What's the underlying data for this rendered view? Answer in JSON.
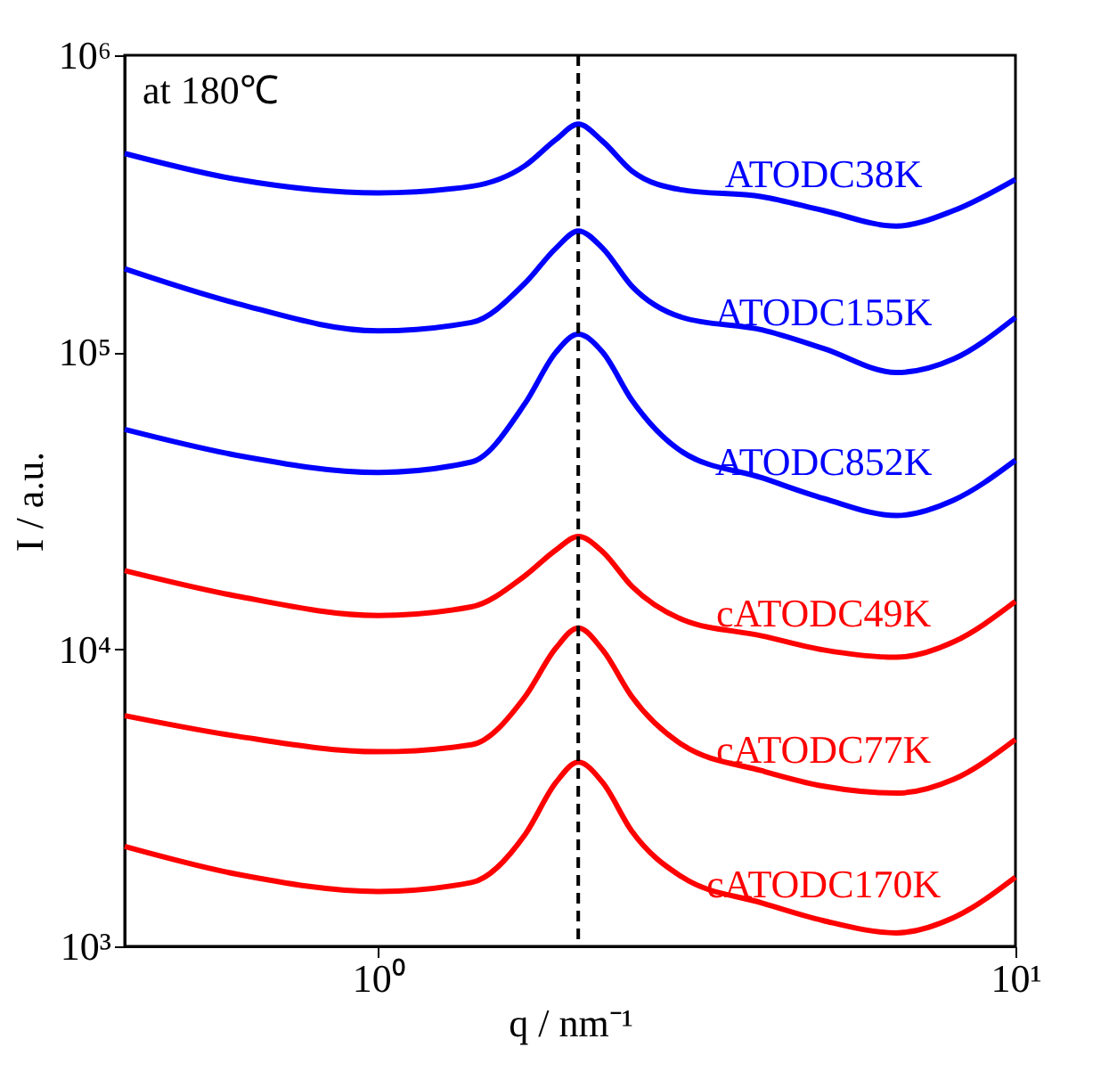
{
  "chart_data": {
    "type": "line",
    "xlabel": "q / nm⁻¹",
    "ylabel": "I / a.u.",
    "log": "xy",
    "grid": false,
    "legend": false,
    "marker": "none",
    "line_style": "solid",
    "x": [
      0.4,
      0.6,
      1.0,
      1.4,
      1.7,
      1.9,
      2.06,
      2.25,
      2.5,
      3.0,
      4.0,
      5.0,
      6.5,
      8.0,
      10.0
    ],
    "xlim": [
      0.4,
      10
    ],
    "ylim": [
      1000,
      1000000
    ],
    "xticks": [
      {
        "value": 1,
        "label": "10⁰"
      },
      {
        "value": 10,
        "label": "10¹"
      }
    ],
    "yticks": [
      {
        "value": 1000,
        "label": "10³"
      },
      {
        "value": 10000,
        "label": "10⁴"
      },
      {
        "value": 100000,
        "label": "10⁵"
      },
      {
        "value": 1000000,
        "label": "10⁶"
      }
    ],
    "series": [
      {
        "name": "ATODC38K",
        "color": "#0000ff",
        "values": [
          467000,
          382000,
          344000,
          362000,
          425000,
          520000,
          586000,
          513000,
          408000,
          352000,
          334000,
          300000,
          266000,
          300000,
          382000
        ]
      },
      {
        "name": "ATODC155K",
        "color": "#0000ff",
        "values": [
          191000,
          146000,
          118000,
          126000,
          171000,
          224000,
          256000,
          224000,
          167000,
          131000,
          119000,
          103000,
          85500,
          95000,
          131000
        ]
      },
      {
        "name": "ATODC852K",
        "color": "#0000ff",
        "values": [
          55000,
          45000,
          39400,
          42700,
          67300,
          100000,
          115000,
          100000,
          69000,
          46200,
          37800,
          32200,
          28200,
          31800,
          43300
        ]
      },
      {
        "name": "cATODC49K",
        "color": "#ff0000",
        "values": [
          18400,
          15100,
          13000,
          13900,
          17700,
          21600,
          24000,
          21300,
          16300,
          12600,
          11100,
          9950,
          9400,
          10600,
          14500
        ]
      },
      {
        "name": "cATODC77K",
        "color": "#ff0000",
        "values": [
          5980,
          5100,
          4520,
          4770,
          6930,
          10100,
          11800,
          9950,
          6930,
          4770,
          3900,
          3460,
          3280,
          3650,
          4970
        ]
      },
      {
        "name": "cATODC170K",
        "color": "#ff0000",
        "values": [
          2170,
          1750,
          1530,
          1640,
          2380,
          3560,
          4170,
          3560,
          2440,
          1710,
          1400,
          1220,
          1110,
          1250,
          1710
        ]
      }
    ],
    "ref_lines": [
      {
        "axis": "x",
        "value": 2.06,
        "color": "#000000",
        "line_style": "dashed"
      }
    ],
    "annotations": [
      "at 180℃"
    ]
  }
}
